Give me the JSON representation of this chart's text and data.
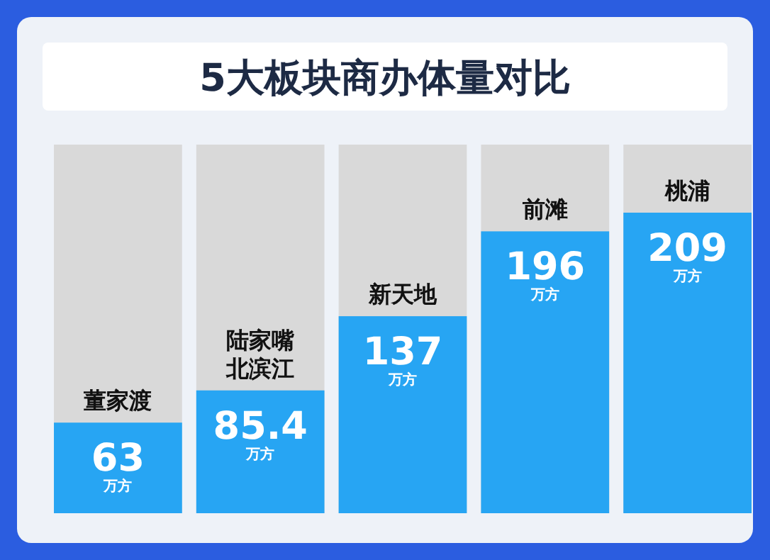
{
  "chart_data": {
    "type": "bar",
    "title": "5大板块商办体量对比",
    "categories": [
      "董家渡",
      "陆家嘴北滨江",
      "新天地",
      "前滩",
      "桃浦"
    ],
    "values": [
      63,
      85.4,
      137,
      196,
      209
    ],
    "value_labels": [
      "63\n万方",
      "85.4\n万方",
      "137\n万方",
      "196\n万方",
      "209\n万方"
    ],
    "color": "#27a5f3"
  }
}
